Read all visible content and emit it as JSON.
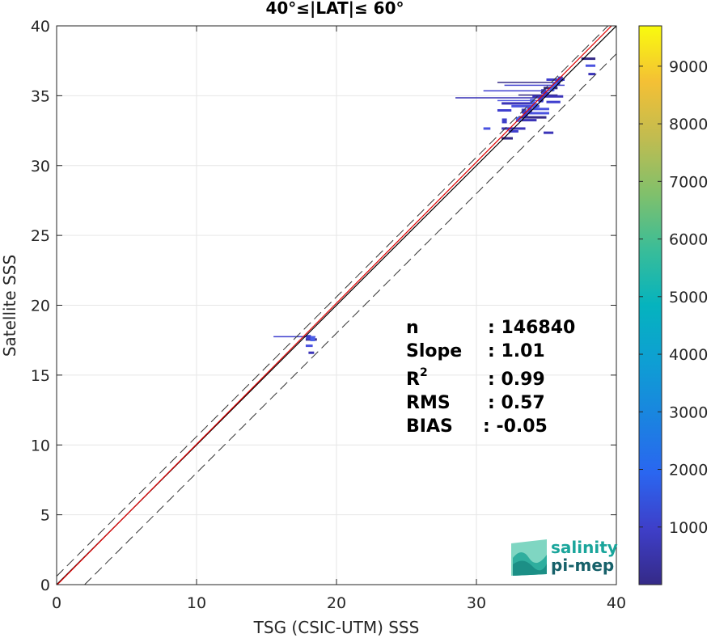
{
  "chart_data": {
    "type": "heatmap",
    "title": "40°≤|LAT|≤ 60°",
    "xlabel": "TSG (CSIC-UTM) SSS",
    "ylabel": "Satellite SSS",
    "xlim": [
      0,
      40
    ],
    "ylim": [
      0,
      40
    ],
    "xticks": [
      "0",
      "10",
      "20",
      "30",
      "40"
    ],
    "yticks": [
      "0",
      "5",
      "10",
      "15",
      "20",
      "25",
      "30",
      "35",
      "40"
    ],
    "grid": true,
    "colormap": "parula",
    "colorbar": {
      "range": [
        0,
        9700
      ],
      "ticks": [
        "1000",
        "2000",
        "3000",
        "4000",
        "5000",
        "6000",
        "7000",
        "8000",
        "9000"
      ]
    },
    "lines": [
      {
        "name": "1:1",
        "color": "#000000",
        "style": "solid",
        "x": [
          0,
          40
        ],
        "y": [
          0,
          40
        ]
      },
      {
        "name": "fit",
        "color": "#e00000",
        "style": "solid",
        "x": [
          0,
          40
        ],
        "y": [
          -0.05,
          40.35
        ]
      },
      {
        "name": "upper",
        "color": "#333333",
        "style": "dashed",
        "x": [
          0,
          40
        ],
        "y": [
          0.6,
          40.6
        ]
      },
      {
        "name": "lower",
        "color": "#333333",
        "style": "dashed",
        "x": [
          2,
          40
        ],
        "y": [
          0,
          38
        ]
      }
    ],
    "stats": [
      {
        "label": "n",
        "value": ": 146840"
      },
      {
        "label": "Slope",
        "value": ": 1.01"
      },
      {
        "label": "R",
        "sup": "2",
        "value": ": 0.99"
      },
      {
        "label": "RMS",
        "value": ": 0.57"
      },
      {
        "label": "BIAS",
        "value": ": -0.05"
      }
    ],
    "density_segments": [
      {
        "x0": 28.5,
        "x1": 34.5,
        "y": 34.85
      },
      {
        "x0": 30.5,
        "x1": 35.5,
        "y": 35.35
      },
      {
        "x0": 31.5,
        "x1": 36.0,
        "y": 35.95
      },
      {
        "x0": 31.5,
        "x1": 34.8,
        "y": 34.65
      },
      {
        "x0": 31.8,
        "x1": 34.2,
        "y": 34.45
      },
      {
        "x0": 32.0,
        "x1": 36.3,
        "y": 35.75
      },
      {
        "x0": 33.0,
        "x1": 35.8,
        "y": 35.05
      },
      {
        "x0": 32.5,
        "x1": 34.5,
        "y": 34.25
      },
      {
        "x0": 31.8,
        "x1": 33.5,
        "y": 32.65
      },
      {
        "x0": 31.5,
        "x1": 32.5,
        "y": 33.95
      },
      {
        "x0": 33.0,
        "x1": 35.0,
        "y": 33.45
      },
      {
        "x0": 33.5,
        "x1": 35.2,
        "y": 33.75
      },
      {
        "x0": 34.0,
        "x1": 36.2,
        "y": 34.95
      },
      {
        "x0": 35.0,
        "x1": 36.3,
        "y": 36.15
      },
      {
        "x0": 34.8,
        "x1": 35.8,
        "y": 35.55
      },
      {
        "x0": 34.0,
        "x1": 35.2,
        "y": 34.05
      },
      {
        "x0": 33.2,
        "x1": 34.3,
        "y": 33.25
      },
      {
        "x0": 32.3,
        "x1": 33.0,
        "y": 32.45
      },
      {
        "x0": 31.8,
        "x1": 32.6,
        "y": 31.95
      },
      {
        "x0": 30.5,
        "x1": 31.0,
        "y": 32.65
      },
      {
        "x0": 34.8,
        "x1": 35.5,
        "y": 32.35
      },
      {
        "x0": 35.0,
        "x1": 36.0,
        "y": 34.55
      },
      {
        "x0": 37.5,
        "x1": 38.5,
        "y": 37.65
      },
      {
        "x0": 37.8,
        "x1": 38.5,
        "y": 37.15
      },
      {
        "x0": 38.0,
        "x1": 38.5,
        "y": 36.55
      },
      {
        "x0": 15.5,
        "x1": 18.5,
        "y": 17.75
      },
      {
        "x0": 17.8,
        "x1": 18.6,
        "y": 17.55
      },
      {
        "x0": 17.8,
        "x1": 18.3,
        "y": 17.1
      },
      {
        "x0": 18.0,
        "x1": 18.4,
        "y": 16.6
      }
    ],
    "density_cells": [
      {
        "x": 33.0,
        "y": 33.3
      },
      {
        "x": 33.5,
        "y": 33.6
      },
      {
        "x": 33.8,
        "y": 34.0
      },
      {
        "x": 34.2,
        "y": 34.3
      },
      {
        "x": 34.6,
        "y": 34.7
      },
      {
        "x": 35.0,
        "y": 35.1
      },
      {
        "x": 35.4,
        "y": 35.5
      },
      {
        "x": 35.8,
        "y": 35.9
      },
      {
        "x": 36.0,
        "y": 36.2
      },
      {
        "x": 34.0,
        "y": 34.6
      },
      {
        "x": 34.8,
        "y": 35.3
      },
      {
        "x": 33.4,
        "y": 33.9
      },
      {
        "x": 35.6,
        "y": 35.8
      },
      {
        "x": 32.0,
        "y": 33.2
      },
      {
        "x": 18.0,
        "y": 17.7
      },
      {
        "x": 18.3,
        "y": 17.6
      }
    ]
  },
  "logo": {
    "line1": "salinity",
    "line2": "pi-mep"
  }
}
